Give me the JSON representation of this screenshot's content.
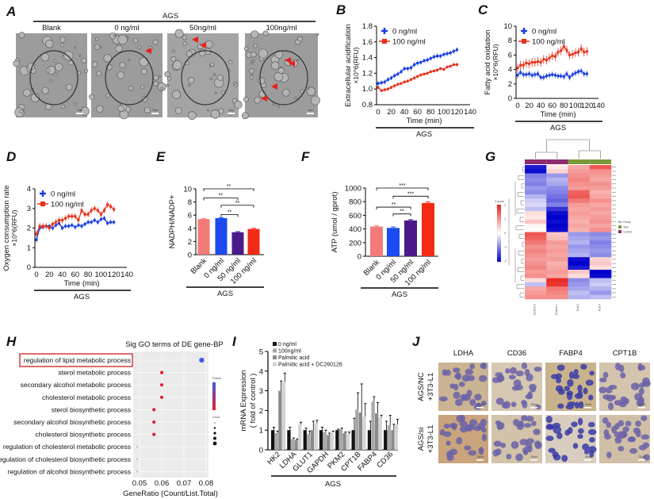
{
  "panel_labels": {
    "a": "A",
    "b": "B",
    "c": "C",
    "d": "D",
    "e": "E",
    "f": "F",
    "g": "G",
    "h": "H",
    "i": "I",
    "j": "J"
  },
  "panel_a": {
    "group": "AGS",
    "conditions": [
      "Blank",
      "0 ng/ml",
      "50ng/ml",
      "100ng/ml"
    ],
    "scale_bar": "5um",
    "arrowhead_color": "#e8201a"
  },
  "chart_data": [
    {
      "panel": "B",
      "type": "line",
      "xlabel": "Time (min)",
      "ylabel": "Extracellular acidification",
      "ylabel_unit": "×10^6(RFU)",
      "group_label": "AGS",
      "xlim": [
        0,
        140
      ],
      "ylim": [
        0.8,
        1.8
      ],
      "xticks": [
        "0",
        "20",
        "40",
        "60",
        "80",
        "100",
        "120",
        "140"
      ],
      "yticks": [
        "0.8",
        "1.0",
        "1.2",
        "1.4",
        "1.6",
        "1.8"
      ],
      "legend_position": "top-left",
      "x": [
        0,
        5,
        10,
        15,
        20,
        25,
        30,
        35,
        40,
        45,
        50,
        55,
        60,
        65,
        70,
        75,
        80,
        85,
        90,
        95,
        100,
        105,
        110,
        115,
        120
      ],
      "series": [
        {
          "name": "0 ng/ml",
          "color": "#1a3fe0",
          "marker": "plus",
          "error": 0.03,
          "values": [
            1.07,
            1.08,
            1.09,
            1.12,
            1.14,
            1.17,
            1.19,
            1.22,
            1.26,
            1.26,
            1.27,
            1.31,
            1.33,
            1.34,
            1.36,
            1.37,
            1.39,
            1.41,
            1.42,
            1.42,
            1.44,
            1.45,
            1.46,
            1.48,
            1.5
          ]
        },
        {
          "name": "100 ng/ml",
          "color": "#e8301a",
          "marker": "square",
          "error": 0.02,
          "values": [
            1.02,
            0.98,
            0.99,
            1.0,
            1.02,
            1.04,
            1.06,
            1.07,
            1.09,
            1.1,
            1.12,
            1.14,
            1.16,
            1.18,
            1.19,
            1.2,
            1.22,
            1.23,
            1.24,
            1.26,
            1.25,
            1.28,
            1.29,
            1.31,
            1.31
          ]
        }
      ]
    },
    {
      "panel": "C",
      "type": "line",
      "xlabel": "Time (min)",
      "ylabel": "Fatty acid oxidation",
      "ylabel_unit": "×10^6(RFU)",
      "group_label": "AGS",
      "xlim": [
        0,
        140
      ],
      "ylim": [
        0,
        10
      ],
      "xticks": [
        "0",
        "20",
        "40",
        "60",
        "80",
        "100",
        "120",
        "140"
      ],
      "yticks": [
        "0",
        "2",
        "4",
        "6",
        "8",
        "10"
      ],
      "legend_position": "top-left",
      "x": [
        0,
        5,
        10,
        15,
        20,
        25,
        30,
        35,
        40,
        45,
        50,
        55,
        60,
        65,
        70,
        75,
        80,
        85,
        90,
        95,
        100,
        105,
        110,
        115,
        120
      ],
      "series": [
        {
          "name": "0 ng/ml",
          "color": "#1a3fe0",
          "marker": "plus",
          "error": 0.4,
          "values": [
            3.2,
            3.6,
            3.3,
            3.3,
            3.4,
            3.2,
            3.3,
            3.4,
            2.9,
            2.9,
            3.1,
            3.2,
            3.3,
            3.2,
            3.1,
            3.1,
            3.0,
            3.4,
            2.9,
            3.3,
            3.5,
            3.7,
            3.8,
            3.4,
            3.4
          ]
        },
        {
          "name": "100 ng/ml",
          "color": "#e8301a",
          "marker": "square",
          "error": 0.6,
          "values": [
            4.2,
            4.6,
            4.6,
            4.9,
            4.8,
            5.0,
            5.0,
            5.1,
            5.0,
            5.4,
            5.3,
            5.6,
            5.9,
            5.8,
            6.4,
            6.6,
            7.2,
            6.7,
            6.0,
            6.1,
            6.3,
            6.4,
            6.9,
            6.4,
            6.5
          ]
        }
      ]
    },
    {
      "panel": "D",
      "type": "line",
      "xlabel": "Time (min)",
      "ylabel": "Oxygen consumption rate",
      "ylabel_unit": "×10^6(RFU)",
      "group_label": "AGS",
      "xlim": [
        0,
        140
      ],
      "ylim": [
        0,
        4
      ],
      "xticks": [
        "0",
        "20",
        "40",
        "60",
        "80",
        "100",
        "120",
        "140"
      ],
      "yticks": [
        "0",
        "1",
        "2",
        "3",
        "4"
      ],
      "legend_position": "top-left",
      "x": [
        0,
        5,
        10,
        15,
        20,
        25,
        30,
        35,
        40,
        45,
        50,
        55,
        60,
        65,
        70,
        75,
        80,
        85,
        90,
        95,
        100,
        105,
        110,
        115,
        120
      ],
      "series": [
        {
          "name": "0 ng/ml",
          "color": "#1a3fe0",
          "marker": "plus",
          "error": 0.12,
          "values": [
            1.4,
            2.0,
            2.05,
            2.1,
            2.1,
            2.0,
            2.15,
            2.25,
            2.0,
            2.1,
            2.1,
            2.15,
            2.05,
            2.15,
            2.1,
            2.2,
            2.3,
            2.3,
            2.4,
            2.3,
            2.45,
            2.5,
            2.25,
            2.3,
            2.3
          ]
        },
        {
          "name": "100 ng/ml",
          "color": "#e8301a",
          "marker": "square",
          "error": 0.15,
          "values": [
            1.7,
            2.1,
            2.1,
            2.1,
            2.0,
            2.2,
            2.3,
            2.4,
            2.4,
            2.5,
            2.6,
            2.6,
            2.6,
            2.4,
            2.9,
            2.7,
            2.7,
            2.9,
            3.0,
            2.9,
            2.7,
            2.9,
            3.2,
            3.1,
            2.95
          ]
        }
      ]
    },
    {
      "panel": "E",
      "type": "bar",
      "ylabel": "NADPH/NADP+",
      "group_label": "AGS",
      "ylim": [
        0,
        10
      ],
      "yticks": [
        "0",
        "2",
        "4",
        "6",
        "8",
        "10"
      ],
      "categories": [
        "Blank",
        "0 ng/ml",
        "50 ng/ml",
        "100 ng/ml"
      ],
      "values": [
        5.4,
        5.55,
        3.4,
        3.9
      ],
      "errors": [
        0.08,
        0.08,
        0.1,
        0.1
      ],
      "colors": [
        "#f27a78",
        "#1a4af0",
        "#4a1a8a",
        "#f52a14"
      ],
      "significance": [
        {
          "from": 0,
          "to": 3,
          "label": "**",
          "level": 10
        },
        {
          "from": 0,
          "to": 2,
          "label": "**",
          "level": 8.6
        },
        {
          "from": 1,
          "to": 3,
          "label": "**",
          "level": 7.5
        },
        {
          "from": 1,
          "to": 2,
          "label": "**",
          "level": 6.1
        }
      ]
    },
    {
      "panel": "F",
      "type": "bar",
      "ylabel": "ATP (umol / gprot)",
      "group_label": "AGS",
      "ylim": [
        0,
        1000
      ],
      "yticks": [
        "0",
        "200",
        "400",
        "600",
        "800",
        "1000"
      ],
      "categories": [
        "Blank",
        "0 ng/ml",
        "50 ng/ml",
        "100 ng/ml"
      ],
      "values": [
        435,
        415,
        525,
        780
      ],
      "errors": [
        10,
        15,
        12,
        15
      ],
      "colors": [
        "#f27a78",
        "#1a4af0",
        "#4a1a8a",
        "#f52a14"
      ],
      "significance": [
        {
          "from": 0,
          "to": 3,
          "label": "***",
          "level": 1000
        },
        {
          "from": 1,
          "to": 3,
          "label": "***",
          "level": 880
        },
        {
          "from": 0,
          "to": 2,
          "label": "**",
          "level": 720
        },
        {
          "from": 1,
          "to": 2,
          "label": "**",
          "level": 620
        }
      ]
    },
    {
      "panel": "G",
      "type": "heatmap",
      "columns": [
        "Control 2",
        "Control 1",
        "Test 2",
        "Test 4"
      ],
      "column_groups": [
        "Control",
        "Control",
        "Test",
        "Test"
      ],
      "colorbar_title": "Z-score",
      "colorbar_ticks": [
        "2",
        "1",
        "0",
        "-1",
        "-2"
      ],
      "zlim": [
        -2,
        2
      ],
      "low_color": "#0000cc",
      "mid_color": "#ffffff",
      "high_color": "#e8201a",
      "group_legend": {
        "title": "Bio Group",
        "items": [
          {
            "label": "Test",
            "color": "#7a9a3a"
          },
          {
            "label": "Control",
            "color": "#8e2a6e"
          }
        ]
      },
      "values": [
        [
          -1.8,
          0.2,
          0.8,
          1.5
        ],
        [
          -1.9,
          0.4,
          0.9,
          1.0
        ],
        [
          -1.0,
          -0.8,
          1.0,
          0.9
        ],
        [
          -0.9,
          -0.6,
          1.1,
          0.8
        ],
        [
          -1.0,
          -0.7,
          1.0,
          1.0
        ],
        [
          -0.8,
          -0.9,
          0.9,
          0.9
        ],
        [
          -0.9,
          -1.0,
          1.4,
          0.7
        ],
        [
          -0.6,
          -1.1,
          1.5,
          0.8
        ],
        [
          -0.4,
          -1.2,
          1.2,
          1.0
        ],
        [
          -0.3,
          -1.0,
          0.9,
          0.8
        ],
        [
          -0.5,
          -1.6,
          0.8,
          0.9
        ],
        [
          0.3,
          -1.9,
          0.9,
          0.8
        ],
        [
          0.2,
          -2.0,
          0.8,
          0.9
        ],
        [
          0.5,
          -1.9,
          0.7,
          1.0
        ],
        [
          0.1,
          -2.0,
          0.8,
          0.8
        ],
        [
          0.0,
          -1.9,
          0.7,
          1.0
        ],
        [
          1.5,
          0.5,
          -0.8,
          -0.9
        ],
        [
          1.4,
          0.6,
          -0.7,
          -0.8
        ],
        [
          1.2,
          0.9,
          -0.6,
          -1.0
        ],
        [
          1.0,
          0.8,
          -0.8,
          -0.9
        ],
        [
          1.1,
          0.9,
          -0.7,
          -0.8
        ],
        [
          1.0,
          0.8,
          -0.6,
          -0.9
        ],
        [
          0.9,
          0.9,
          -1.9,
          0.4
        ],
        [
          1.0,
          0.7,
          -2.0,
          0.5
        ],
        [
          1.1,
          0.8,
          -1.8,
          0.3
        ],
        [
          0.9,
          0.9,
          0.5,
          -2.0
        ],
        [
          1.0,
          0.8,
          0.3,
          -1.9
        ],
        [
          0.3,
          1.9,
          -0.9,
          -0.5
        ],
        [
          -0.5,
          1.8,
          -0.8,
          -0.4
        ],
        [
          0.8,
          1.2,
          -0.7,
          -0.6
        ],
        [
          0.9,
          1.1,
          -0.5,
          -0.8
        ],
        [
          1.0,
          1.0,
          -0.6,
          -0.5
        ]
      ]
    },
    {
      "panel": "H",
      "type": "scatter",
      "title": "Sig GO terms of DE gene-BP",
      "xlabel": "GeneRatio (Count/List.Total)",
      "xlim": [
        0.047,
        0.081
      ],
      "xticks": [
        "0.05",
        "0.06",
        "0.07",
        "0.08"
      ],
      "legend_titles": [
        "Pvalue",
        "Count"
      ],
      "highlighted_term": "regulation of lipid metabolic process",
      "terms": [
        {
          "label": "regulation of lipid metabolic process",
          "x": 0.078,
          "count": 5,
          "color": "#3a5ae8"
        },
        {
          "label": "sterol metabolic process",
          "x": 0.06,
          "count": 3,
          "color": "#e0203a"
        },
        {
          "label": "secondary alcohol metabolic process",
          "x": 0.06,
          "count": 3,
          "color": "#e0203a"
        },
        {
          "label": "cholesterol metabolic process",
          "x": 0.06,
          "count": 3,
          "color": "#e0203a"
        },
        {
          "label": "sterol biosynthetic process",
          "x": 0.0565,
          "count": 3,
          "color": "#e0203a"
        },
        {
          "label": "secondary alcohol biosynthetic  process",
          "x": 0.0565,
          "count": 3,
          "color": "#e0203a"
        },
        {
          "label": "cholesterol biosynthetic process",
          "x": 0.0565,
          "count": 3,
          "color": "#e0203a"
        },
        {
          "label": "regulation of cholesterol metabolic process",
          "x": 0.049,
          "count": 1,
          "color": "#e0a0b0"
        },
        {
          "label": "regulation of cholesterol biosynthetic process",
          "x": 0.049,
          "count": 1,
          "color": "#e0a0b0"
        },
        {
          "label": "regulation of alcohol biosynthetic process",
          "x": 0.049,
          "count": 1,
          "color": "#e0a0b0"
        }
      ]
    },
    {
      "panel": "I",
      "type": "bar",
      "ylabel": "mRNA Expression",
      "ylabel_unit": "( fold of control )",
      "group_label": "AGS",
      "ylim": [
        0,
        5
      ],
      "yticks": [
        "0",
        "1",
        "2",
        "3",
        "4",
        "5"
      ],
      "legend_position": "top-left",
      "categories": [
        "HK2",
        "LDHA",
        "GLUT1",
        "GAPDH",
        "PKM2",
        "CPT1B",
        "FABP4",
        "CD36"
      ],
      "series": [
        {
          "name": "0 ng/ml",
          "color": "#111111",
          "values": [
            1.0,
            1.0,
            1.0,
            1.0,
            1.0,
            1.0,
            1.0,
            1.0
          ],
          "errors": [
            0.15,
            0.15,
            0.1,
            0.15,
            0.05,
            0.6,
            0.45,
            0.45
          ]
        },
        {
          "name": "100ng/ml",
          "color": "#a8a8a8",
          "values": [
            0.85,
            0.55,
            0.8,
            0.9,
            1.05,
            2.05,
            2.45,
            1.25
          ],
          "errors": [
            0.1,
            0.05,
            0.15,
            0.1,
            0.05,
            0.85,
            0.25,
            0.5
          ]
        },
        {
          "name": "Palmitic acid",
          "color": "#8a8a8a",
          "values": [
            3.0,
            0.5,
            1.0,
            0.75,
            0.85,
            1.9,
            1.85,
            1.0
          ],
          "errors": [
            0.5,
            0.05,
            0.45,
            0.1,
            0.05,
            1.45,
            0.55,
            0.3
          ]
        },
        {
          "name": "Palmitic acid + DC260126",
          "color": "#d4d4d4",
          "values": [
            3.45,
            1.3,
            1.35,
            0.9,
            0.8,
            1.7,
            1.65,
            1.3
          ],
          "errors": [
            0.45,
            0.1,
            0.15,
            0.05,
            0.1,
            0.65,
            0.1,
            0.25
          ]
        }
      ]
    }
  ],
  "panel_j": {
    "markers": [
      "LDHA",
      "CD36",
      "FABP4",
      "CPT1B"
    ],
    "rows": [
      {
        "line1": "AGS/NC",
        "line2": "+3T3-L1"
      },
      {
        "line1": "AGS/si",
        "line2": "+3T3-L1"
      }
    ],
    "scale_bar": "25um"
  }
}
